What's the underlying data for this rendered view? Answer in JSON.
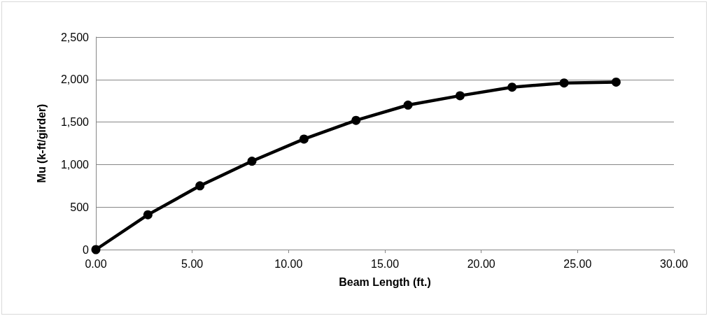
{
  "chart_data": {
    "type": "line",
    "xlabel": "Beam Length (ft.)",
    "ylabel": "Mu (k-ft/girder)",
    "x": [
      0,
      2.7,
      5.4,
      8.1,
      10.8,
      13.5,
      16.2,
      18.9,
      21.6,
      24.3,
      27.0
    ],
    "series": [
      {
        "color": "#000000",
        "values": [
          0,
          410,
          750,
          1040,
          1300,
          1520,
          1700,
          1810,
          1910,
          1960,
          1970
        ]
      }
    ],
    "xlim": [
      0,
      30
    ],
    "xticks": [
      {
        "value": 0,
        "label": "0.00"
      },
      {
        "value": 5,
        "label": "5.00"
      },
      {
        "value": 10,
        "label": "10.00"
      },
      {
        "value": 15,
        "label": "15.00"
      },
      {
        "value": 20,
        "label": "20.00"
      },
      {
        "value": 25,
        "label": "25.00"
      },
      {
        "value": 30,
        "label": "30.00"
      }
    ],
    "ylim": [
      0,
      2500
    ],
    "yticks": [
      0,
      500,
      {
        "value": 1000,
        "label": "1,000"
      },
      {
        "value": 1500,
        "label": "1,500"
      },
      {
        "value": 2000,
        "label": "2,000"
      },
      {
        "value": 2500,
        "label": "2,500"
      }
    ],
    "grid": "y",
    "marker": "circle",
    "line_style": "solid"
  }
}
